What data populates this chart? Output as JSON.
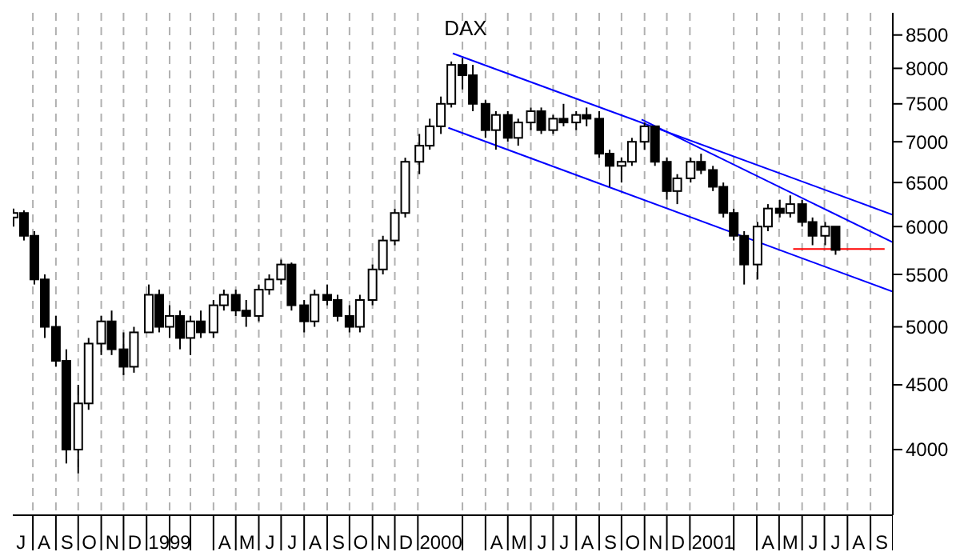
{
  "chart_data": {
    "type": "candlestick",
    "title": "DAX",
    "x": [
      "1998-07-06",
      "1998-07-20",
      "1998-08-03",
      "1998-08-17",
      "1998-09-01",
      "1998-09-15",
      "1998-10-01",
      "1998-10-15",
      "1998-11-01",
      "1998-11-15",
      "1998-12-01",
      "1998-12-15",
      "1999-01-04",
      "1999-01-18",
      "1999-02-01",
      "1999-02-15",
      "1999-03-01",
      "1999-03-15",
      "1999-04-01",
      "1999-04-15",
      "1999-05-01",
      "1999-05-15",
      "1999-06-01",
      "1999-06-15",
      "1999-07-01",
      "1999-07-15",
      "1999-08-01",
      "1999-08-15",
      "1999-09-01",
      "1999-09-15",
      "1999-10-01",
      "1999-10-15",
      "1999-11-01",
      "1999-11-15",
      "1999-12-01",
      "1999-12-15",
      "2000-01-03",
      "2000-01-17",
      "2000-02-01",
      "2000-02-15",
      "2000-03-01",
      "2000-03-15",
      "2000-04-01",
      "2000-04-15",
      "2000-05-01",
      "2000-05-15",
      "2000-06-01",
      "2000-06-15",
      "2000-07-01",
      "2000-07-15",
      "2000-08-01",
      "2000-08-15",
      "2000-09-01",
      "2000-09-15",
      "2000-10-01",
      "2000-10-15",
      "2000-11-01",
      "2000-11-15",
      "2000-12-01",
      "2000-12-15",
      "2001-01-02",
      "2001-01-16",
      "2001-02-01",
      "2001-02-15",
      "2001-03-01",
      "2001-03-15",
      "2001-04-02",
      "2001-04-16",
      "2001-05-02",
      "2001-05-16",
      "2001-06-01",
      "2001-06-15",
      "2001-07-02",
      "2001-07-16"
    ],
    "ohlc": [
      [
        6100,
        6200,
        6000,
        6150
      ],
      [
        6150,
        6180,
        5850,
        5900
      ],
      [
        5900,
        5950,
        5400,
        5450
      ],
      [
        5450,
        5500,
        4900,
        5000
      ],
      [
        5000,
        5100,
        4650,
        4700
      ],
      [
        4700,
        4800,
        3900,
        4000
      ],
      [
        4000,
        4500,
        3830,
        4350
      ],
      [
        4350,
        4900,
        4300,
        4850
      ],
      [
        4850,
        5100,
        4750,
        5050
      ],
      [
        5050,
        5150,
        4750,
        4800
      ],
      [
        4800,
        4950,
        4580,
        4650
      ],
      [
        4650,
        5000,
        4600,
        4950
      ],
      [
        4950,
        5400,
        4950,
        5300
      ],
      [
        5300,
        5350,
        4950,
        5000
      ],
      [
        5000,
        5200,
        4900,
        5100
      ],
      [
        5100,
        5150,
        4800,
        4900
      ],
      [
        4900,
        5100,
        4750,
        5050
      ],
      [
        5050,
        5150,
        4900,
        4950
      ],
      [
        4950,
        5250,
        4900,
        5200
      ],
      [
        5200,
        5350,
        5150,
        5300
      ],
      [
        5300,
        5350,
        5100,
        5150
      ],
      [
        5150,
        5250,
        5000,
        5100
      ],
      [
        5100,
        5400,
        5050,
        5350
      ],
      [
        5350,
        5500,
        5300,
        5450
      ],
      [
        5450,
        5650,
        5400,
        5600
      ],
      [
        5600,
        5620,
        5150,
        5200
      ],
      [
        5200,
        5250,
        4950,
        5050
      ],
      [
        5050,
        5350,
        5000,
        5300
      ],
      [
        5300,
        5400,
        5200,
        5250
      ],
      [
        5250,
        5300,
        5050,
        5100
      ],
      [
        5100,
        5200,
        4950,
        5000
      ],
      [
        5000,
        5300,
        4950,
        5250
      ],
      [
        5250,
        5600,
        5200,
        5550
      ],
      [
        5550,
        5900,
        5500,
        5850
      ],
      [
        5850,
        6200,
        5800,
        6150
      ],
      [
        6150,
        6800,
        6100,
        6750
      ],
      [
        6750,
        7100,
        6600,
        6950
      ],
      [
        6950,
        7300,
        6900,
        7200
      ],
      [
        7200,
        7600,
        7100,
        7500
      ],
      [
        7500,
        8100,
        7450,
        8050
      ],
      [
        8050,
        8150,
        7700,
        7900
      ],
      [
        7900,
        8050,
        7400,
        7500
      ],
      [
        7500,
        7550,
        7050,
        7150
      ],
      [
        7150,
        7400,
        6900,
        7350
      ],
      [
        7350,
        7400,
        7000,
        7050
      ],
      [
        7050,
        7300,
        6950,
        7250
      ],
      [
        7250,
        7450,
        7150,
        7400
      ],
      [
        7400,
        7450,
        7100,
        7150
      ],
      [
        7150,
        7350,
        7100,
        7300
      ],
      [
        7300,
        7500,
        7200,
        7250
      ],
      [
        7250,
        7400,
        7150,
        7350
      ],
      [
        7350,
        7450,
        7200,
        7300
      ],
      [
        7300,
        7400,
        6800,
        6850
      ],
      [
        6850,
        6900,
        6450,
        6700
      ],
      [
        6700,
        6800,
        6500,
        6750
      ],
      [
        6750,
        7050,
        6700,
        7000
      ],
      [
        7000,
        7250,
        6900,
        7200
      ],
      [
        7200,
        7200,
        6700,
        6750
      ],
      [
        6750,
        6800,
        6300,
        6400
      ],
      [
        6400,
        6600,
        6250,
        6550
      ],
      [
        6550,
        6800,
        6500,
        6750
      ],
      [
        6750,
        6850,
        6600,
        6650
      ],
      [
        6650,
        6700,
        6400,
        6450
      ],
      [
        6450,
        6500,
        6100,
        6150
      ],
      [
        6150,
        6200,
        5850,
        5900
      ],
      [
        5900,
        5950,
        5400,
        5600
      ],
      [
        5600,
        6050,
        5450,
        6000
      ],
      [
        6000,
        6250,
        5950,
        6200
      ],
      [
        6200,
        6300,
        6100,
        6150
      ],
      [
        6150,
        6350,
        6100,
        6250
      ],
      [
        6250,
        6300,
        6000,
        6050
      ],
      [
        6050,
        6100,
        5800,
        5900
      ],
      [
        5900,
        6050,
        5800,
        6000
      ],
      [
        6000,
        6000,
        5700,
        5750
      ]
    ],
    "series": [
      {
        "type": "line",
        "color": "#0000ff",
        "x": [
          "2000-02-17",
          "2001-10-01"
        ],
        "values": [
          8220,
          6130
        ]
      },
      {
        "type": "line",
        "color": "#0000ff",
        "x": [
          "2000-02-11",
          "2001-10-01"
        ],
        "values": [
          7180,
          5330
        ]
      },
      {
        "type": "line",
        "color": "#0000ff",
        "x": [
          "2000-10-28",
          "2001-10-01"
        ],
        "values": [
          7290,
          5830
        ]
      },
      {
        "type": "line",
        "color": "#ff0000",
        "x": [
          "2001-05-20",
          "2001-09-20"
        ],
        "values": [
          5760,
          5760
        ]
      }
    ],
    "log": true,
    "grid": "x",
    "xlim": [
      "1998-07-05",
      "2001-10-01"
    ],
    "xticks": [
      {
        "value": "1998-07-16",
        "label": "J"
      },
      {
        "value": "1998-08-01",
        "label": null
      },
      {
        "value": "1998-08-16",
        "label": "A"
      },
      {
        "value": "1998-09-01",
        "label": null
      },
      {
        "value": "1998-09-16",
        "label": "S"
      },
      {
        "value": "1998-10-01",
        "label": null
      },
      {
        "value": "1998-10-16",
        "label": "O"
      },
      {
        "value": "1998-11-01",
        "label": null
      },
      {
        "value": "1998-11-16",
        "label": "N"
      },
      {
        "value": "1998-12-01",
        "label": null
      },
      {
        "value": "1998-12-16",
        "label": "D"
      },
      {
        "value": "1999-01-01",
        "label": null
      },
      {
        "value": "1999-02-01",
        "label": "1999"
      },
      {
        "value": "1999-02-01",
        "label": null
      },
      {
        "value": "1999-03-01",
        "label": null
      },
      {
        "value": "1999-04-01",
        "label": null
      },
      {
        "value": "1999-04-16",
        "label": "A"
      },
      {
        "value": "1999-05-01",
        "label": null
      },
      {
        "value": "1999-05-16",
        "label": "M"
      },
      {
        "value": "1999-06-01",
        "label": null
      },
      {
        "value": "1999-06-16",
        "label": "J"
      },
      {
        "value": "1999-07-01",
        "label": null
      },
      {
        "value": "1999-07-16",
        "label": "J"
      },
      {
        "value": "1999-08-01",
        "label": null
      },
      {
        "value": "1999-08-16",
        "label": "A"
      },
      {
        "value": "1999-09-01",
        "label": null
      },
      {
        "value": "1999-09-16",
        "label": "S"
      },
      {
        "value": "1999-10-01",
        "label": null
      },
      {
        "value": "1999-10-16",
        "label": "O"
      },
      {
        "value": "1999-11-01",
        "label": null
      },
      {
        "value": "1999-11-16",
        "label": "N"
      },
      {
        "value": "1999-12-01",
        "label": null
      },
      {
        "value": "1999-12-16",
        "label": "D"
      },
      {
        "value": "2000-01-01",
        "label": null
      },
      {
        "value": "2000-02-01",
        "label": "2000"
      },
      {
        "value": "2000-03-01",
        "label": null
      },
      {
        "value": "2000-04-01",
        "label": null
      },
      {
        "value": "2000-04-16",
        "label": "A"
      },
      {
        "value": "2000-05-01",
        "label": null
      },
      {
        "value": "2000-05-16",
        "label": "M"
      },
      {
        "value": "2000-06-01",
        "label": null
      },
      {
        "value": "2000-06-16",
        "label": "J"
      },
      {
        "value": "2000-07-01",
        "label": null
      },
      {
        "value": "2000-07-16",
        "label": "J"
      },
      {
        "value": "2000-08-01",
        "label": null
      },
      {
        "value": "2000-08-16",
        "label": "A"
      },
      {
        "value": "2000-09-01",
        "label": null
      },
      {
        "value": "2000-09-16",
        "label": "S"
      },
      {
        "value": "2000-10-01",
        "label": null
      },
      {
        "value": "2000-10-16",
        "label": "O"
      },
      {
        "value": "2000-11-01",
        "label": null
      },
      {
        "value": "2000-11-16",
        "label": "N"
      },
      {
        "value": "2000-12-01",
        "label": null
      },
      {
        "value": "2000-12-16",
        "label": "D"
      },
      {
        "value": "2001-01-01",
        "label": null
      },
      {
        "value": "2001-02-01",
        "label": "2001"
      },
      {
        "value": "2001-03-01",
        "label": null
      },
      {
        "value": "2001-04-01",
        "label": null
      },
      {
        "value": "2001-04-16",
        "label": "A"
      },
      {
        "value": "2001-05-01",
        "label": null
      },
      {
        "value": "2001-05-16",
        "label": "M"
      },
      {
        "value": "2001-06-01",
        "label": null
      },
      {
        "value": "2001-06-16",
        "label": "J"
      },
      {
        "value": "2001-07-01",
        "label": null
      },
      {
        "value": "2001-07-16",
        "label": "J"
      },
      {
        "value": "2001-08-01",
        "label": null
      },
      {
        "value": "2001-08-16",
        "label": "A"
      },
      {
        "value": "2001-09-01",
        "label": null
      },
      {
        "value": "2001-09-16",
        "label": "S"
      },
      {
        "value": "2001-10-01",
        "label": null
      }
    ],
    "ylim": [
      3550,
      8850
    ],
    "yticks": [
      4000,
      4500,
      5000,
      5500,
      6000,
      6500,
      7000,
      7500,
      8000,
      8500
    ]
  }
}
